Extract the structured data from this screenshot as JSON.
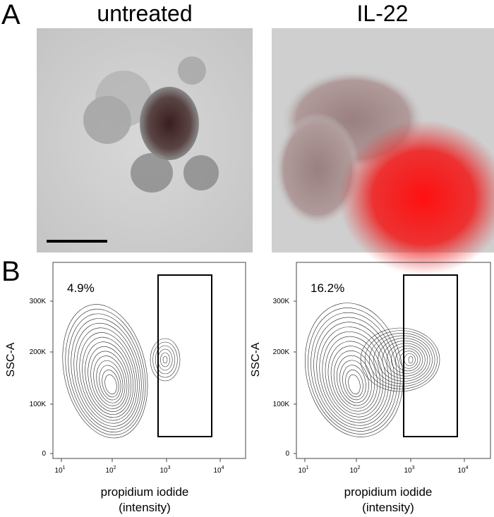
{
  "panel_a": {
    "label": "A",
    "images": [
      {
        "title": "untreated"
      },
      {
        "title": "IL-22"
      }
    ]
  },
  "panel_b": {
    "label": "B",
    "plots": [
      {
        "gate_percent": "4.9%",
        "y_label": "SSC-A",
        "y_ticks": [
          "300K",
          "200K",
          "100K",
          "0"
        ],
        "x_ticks": [
          {
            "base": "10",
            "exp": "1"
          },
          {
            "base": "10",
            "exp": "2"
          },
          {
            "base": "10",
            "exp": "3"
          },
          {
            "base": "10",
            "exp": "4"
          }
        ],
        "x_label": [
          "propidium iodide",
          "(intensity)"
        ]
      },
      {
        "gate_percent": "16.2%",
        "y_label": "SSC-A",
        "y_ticks": [
          "300K",
          "200K",
          "100K",
          "0"
        ],
        "x_ticks": [
          {
            "base": "10",
            "exp": "1"
          },
          {
            "base": "10",
            "exp": "2"
          },
          {
            "base": "10",
            "exp": "3"
          },
          {
            "base": "10",
            "exp": "4"
          }
        ],
        "x_label": [
          "propidium iodide",
          "(intensity)"
        ]
      }
    ]
  }
}
